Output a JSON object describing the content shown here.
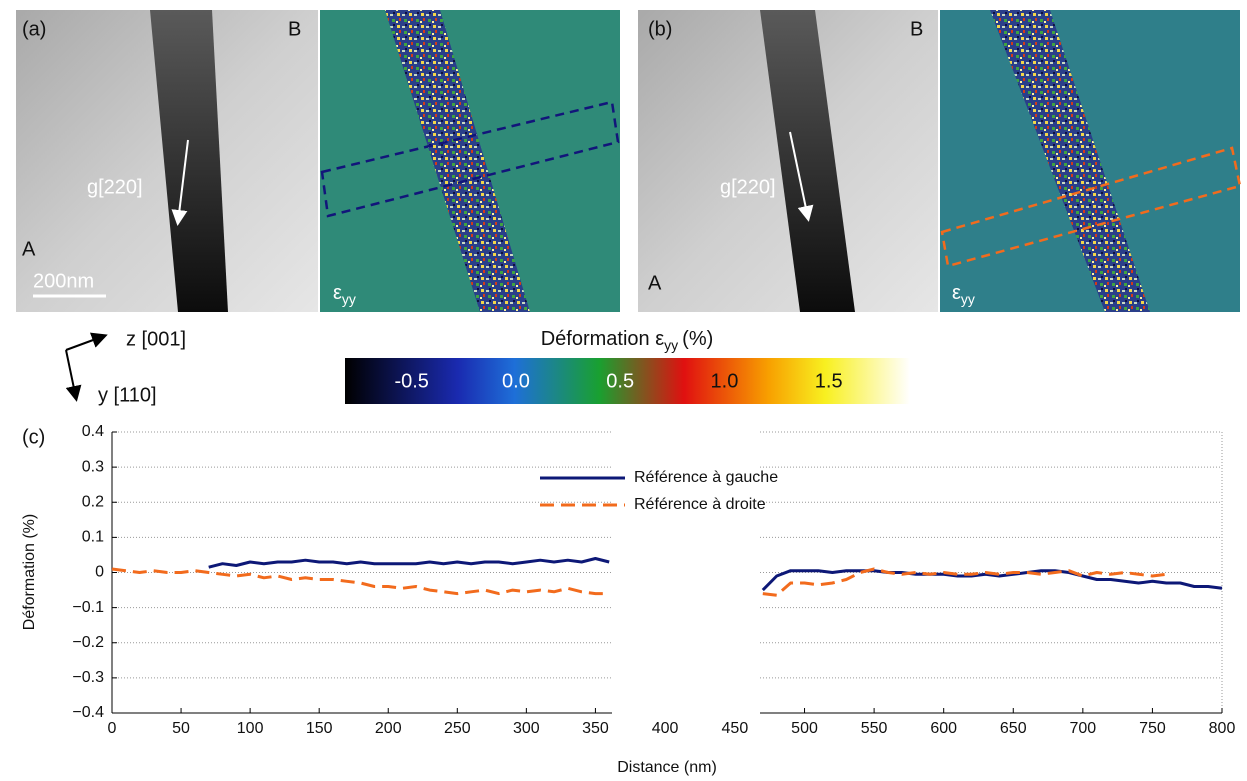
{
  "panels": [
    {
      "label": "(a)",
      "corner_top": "B",
      "corner_bottom": "A",
      "vector": "g[220]",
      "scale_bar": "200nm",
      "strain_symbol": "ε",
      "strain_subscript": "yy"
    },
    {
      "label": "(b)",
      "corner_top": "B",
      "corner_bottom": "A",
      "vector": "g[220]",
      "strain_symbol": "ε",
      "strain_subscript": "yy"
    }
  ],
  "axes_directions": {
    "z": "z [001]",
    "y": "y [110]"
  },
  "colorbar": {
    "title": "Déformation ε",
    "title_subscript": "yy",
    "title_unit": "(%)",
    "clim": [
      -0.82,
      1.89
    ],
    "ticks": [
      -0.5,
      {
        "value": 0,
        "label": "0.0"
      },
      0.5,
      {
        "value": 1,
        "label": "1.0"
      },
      1.5
    ]
  },
  "chart_data": {
    "type": "line",
    "panel_label": "(c)",
    "xlabel": "Distance (nm)",
    "ylabel": "Déformation (%)",
    "xlim": [
      0,
      800
    ],
    "x_break": [
      362,
      468
    ],
    "ylim": [
      -0.4,
      0.4
    ],
    "grid": true,
    "legend": "top-center",
    "xticks": [
      0,
      50,
      100,
      150,
      200,
      250,
      300,
      350,
      400,
      450,
      500,
      550,
      600,
      650,
      700,
      750,
      800
    ],
    "yticks": [
      {
        "value": -0.4,
        "label": "−0.4"
      },
      {
        "value": -0.3,
        "label": "−0.3"
      },
      {
        "value": -0.2,
        "label": "−0.2"
      },
      {
        "value": -0.1,
        "label": "−0.1"
      },
      0,
      0.1,
      0.2,
      0.3,
      0.4
    ],
    "x": [
      0,
      10,
      20,
      30,
      40,
      50,
      60,
      70,
      80,
      90,
      100,
      110,
      120,
      130,
      140,
      150,
      160,
      170,
      180,
      190,
      200,
      210,
      220,
      230,
      240,
      250,
      260,
      270,
      280,
      290,
      300,
      310,
      320,
      330,
      340,
      350,
      360,
      370,
      380,
      390,
      400,
      410,
      420,
      430,
      440,
      450,
      460,
      470,
      480,
      490,
      500,
      510,
      520,
      530,
      540,
      550,
      560,
      570,
      580,
      590,
      600,
      610,
      620,
      630,
      640,
      650,
      660,
      670,
      680,
      690,
      700,
      710,
      720,
      730,
      740,
      750,
      760,
      770,
      780,
      790,
      800
    ],
    "series": [
      {
        "name": "Référence à gauche",
        "color": "#0d1877",
        "dash": false,
        "values": [
          null,
          null,
          null,
          null,
          null,
          null,
          null,
          0.015,
          0.025,
          0.02,
          0.03,
          0.025,
          0.03,
          0.03,
          0.035,
          0.03,
          0.03,
          0.025,
          0.03,
          0.025,
          0.025,
          0.025,
          0.025,
          0.03,
          0.025,
          0.03,
          0.025,
          0.03,
          0.03,
          0.025,
          0.03,
          0.035,
          0.03,
          0.035,
          0.03,
          0.04,
          0.03,
          null,
          null,
          null,
          null,
          null,
          null,
          null,
          null,
          null,
          null,
          -0.05,
          -0.01,
          0.005,
          0.005,
          0.005,
          0,
          0.005,
          0.005,
          0.005,
          0,
          0,
          -0.005,
          -0.005,
          -0.005,
          -0.01,
          -0.01,
          -0.005,
          -0.01,
          -0.005,
          0,
          0.005,
          0.005,
          0,
          -0.01,
          -0.02,
          -0.02,
          -0.025,
          -0.03,
          -0.025,
          -0.03,
          -0.03,
          -0.04,
          -0.04,
          -0.045
        ]
      },
      {
        "name": "Référence à droite",
        "color": "#f26b1d",
        "dash": true,
        "values": [
          0.01,
          0.005,
          0,
          0.005,
          0,
          0,
          0.005,
          0,
          -0.005,
          -0.01,
          -0.005,
          -0.015,
          -0.01,
          -0.02,
          -0.015,
          -0.02,
          -0.02,
          -0.025,
          -0.03,
          -0.04,
          -0.04,
          -0.045,
          -0.04,
          -0.05,
          -0.055,
          -0.06,
          -0.055,
          -0.05,
          -0.06,
          -0.05,
          -0.055,
          -0.05,
          -0.055,
          -0.045,
          -0.055,
          -0.06,
          -0.06,
          null,
          null,
          null,
          null,
          null,
          null,
          null,
          null,
          null,
          null,
          -0.06,
          -0.065,
          -0.03,
          -0.03,
          -0.035,
          -0.03,
          -0.02,
          0,
          0.01,
          0,
          -0.005,
          0,
          -0.005,
          0,
          -0.005,
          -0.005,
          0,
          -0.005,
          0,
          0,
          -0.005,
          0,
          0.005,
          -0.01,
          0,
          -0.005,
          0,
          -0.005,
          -0.01,
          -0.005,
          null,
          null,
          null,
          null
        ]
      }
    ]
  }
}
